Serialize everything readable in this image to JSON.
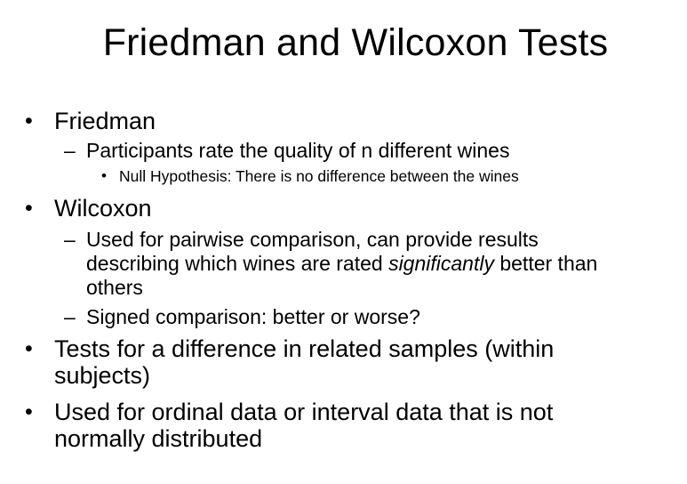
{
  "slide": {
    "title": "Friedman and Wilcoxon Tests",
    "bullet_symbol": "•",
    "dash_symbol": "–",
    "items": [
      {
        "text": "Friedman"
      },
      {
        "text": "Participants rate the quality of n different wines"
      },
      {
        "text": "Null Hypothesis: There is no difference between the wines"
      },
      {
        "text": "Wilcoxon"
      },
      {
        "line1": "Used for pairwise comparison, can provide results",
        "line2_before": "describing which wines are rated ",
        "line2_emphasis": "significantly",
        "line2_after": " better than",
        "line3": "others"
      },
      {
        "text": "Signed comparison: better or worse?"
      },
      {
        "line1": "Tests for a difference in related samples (within",
        "line2": "subjects)"
      },
      {
        "line1": "Used for ordinal data or interval data that is not",
        "line2": "normally distributed"
      }
    ]
  }
}
